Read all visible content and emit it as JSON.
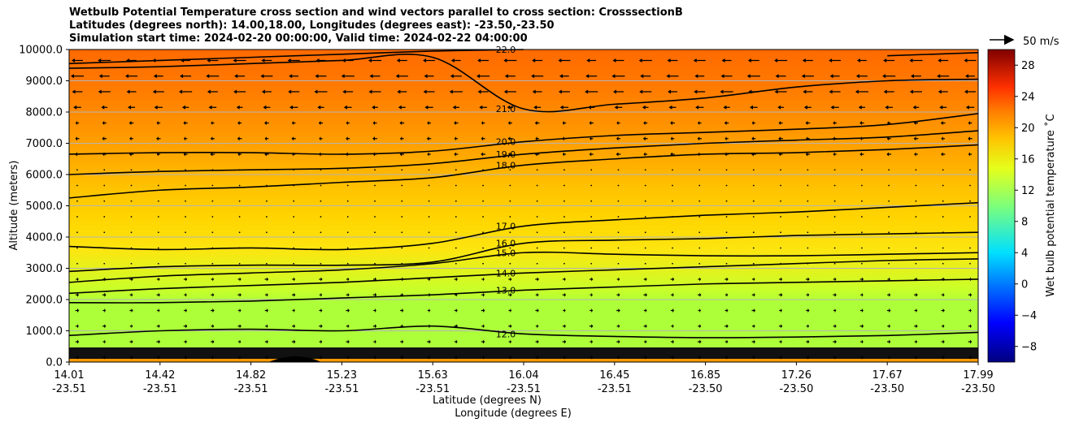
{
  "chart_data": {
    "type": "heatmap",
    "title_lines": [
      "Wetbulb Potential Temperature cross section and wind vectors parallel to cross section: CrosssectionB",
      "Latitudes (degrees north): 14.00,18.00, Longitudes (degrees east): -23.50,-23.50",
      "Simulation start time: 2024-02-20 00:00:00, Valid time: 2024-02-22 04:00:00"
    ],
    "ylabel": "Altitude (meters)",
    "xlabel_lat": "Latitude (degrees N)",
    "xlabel_lon": "Longitude (degrees E)",
    "ylim": [
      0,
      10000
    ],
    "xlim": [
      14.01,
      17.99
    ],
    "y_ticks": [
      0,
      1000,
      2000,
      3000,
      4000,
      5000,
      6000,
      7000,
      8000,
      9000,
      10000
    ],
    "y_tick_labels": [
      "0.0",
      "1000.0",
      "2000.0",
      "3000.0",
      "4000.0",
      "5000.0",
      "6000.0",
      "7000.0",
      "8000.0",
      "9000.0",
      "10000.0"
    ],
    "x_ticks": [
      {
        "lat": "14.01",
        "lon": "-23.51"
      },
      {
        "lat": "14.42",
        "lon": "-23.51"
      },
      {
        "lat": "14.82",
        "lon": "-23.51"
      },
      {
        "lat": "15.23",
        "lon": "-23.51"
      },
      {
        "lat": "15.63",
        "lon": "-23.51"
      },
      {
        "lat": "16.04",
        "lon": "-23.51"
      },
      {
        "lat": "16.45",
        "lon": "-23.51"
      },
      {
        "lat": "16.85",
        "lon": "-23.50"
      },
      {
        "lat": "17.26",
        "lon": "-23.50"
      },
      {
        "lat": "17.67",
        "lon": "-23.50"
      },
      {
        "lat": "17.99",
        "lon": "-23.50"
      }
    ],
    "grid": "horizontal",
    "colorbar": {
      "label": "Wet bulb potential temperature ˚C",
      "min": -10,
      "max": 30,
      "ticks": [
        -8,
        -4,
        0,
        4,
        8,
        12,
        16,
        20,
        24,
        28
      ],
      "tick_labels": [
        "−8",
        "−4",
        "0",
        "4",
        "8",
        "12",
        "16",
        "20",
        "24",
        "28"
      ]
    },
    "quiver_key": {
      "label": "50 m/s"
    },
    "contours": [
      {
        "level": 12.0,
        "label": "12.0",
        "y": [
          850,
          1000,
          1050,
          1000,
          1150,
          900,
          820,
          780,
          800,
          850,
          950
        ]
      },
      {
        "level": 13.0,
        "label": "13.0",
        "y": [
          1900,
          1900,
          1950,
          2050,
          2150,
          2300,
          2400,
          2500,
          2550,
          2600,
          2650
        ]
      },
      {
        "level": 14.0,
        "label": "14.0",
        "y": [
          2200,
          2350,
          2450,
          2550,
          2700,
          2850,
          2950,
          3050,
          3150,
          3250,
          3300
        ]
      },
      {
        "level": 15.0,
        "label": "15.0",
        "y": [
          2550,
          2750,
          2850,
          2950,
          3150,
          3500,
          3450,
          3400,
          3400,
          3450,
          3500
        ]
      },
      {
        "level": 16.0,
        "label": "16.0",
        "y": [
          2900,
          3050,
          3100,
          3100,
          3200,
          3800,
          3900,
          3950,
          4050,
          4100,
          4150
        ]
      },
      {
        "level": 17.0,
        "label": "17.0",
        "y": [
          3700,
          3600,
          3650,
          3600,
          3800,
          4350,
          4550,
          4700,
          4800,
          4950,
          5100
        ]
      },
      {
        "level": 18.0,
        "label": "18.0",
        "y": [
          5250,
          5500,
          5600,
          5750,
          5900,
          6300,
          6500,
          6650,
          6700,
          6800,
          6950
        ]
      },
      {
        "level": 19.0,
        "label": "19.0",
        "y": [
          6000,
          6100,
          6150,
          6200,
          6350,
          6650,
          6850,
          7000,
          7100,
          7200,
          7400
        ]
      },
      {
        "level": 20.0,
        "label": "20.0",
        "y": [
          6650,
          6700,
          6700,
          6650,
          6750,
          7050,
          7250,
          7350,
          7450,
          7600,
          7950
        ]
      },
      {
        "level": 21.0,
        "label": "21.0",
        "y": [
          9400,
          9450,
          9550,
          9650,
          9750,
          8100,
          8250,
          8450,
          8800,
          9000,
          9050
        ]
      },
      {
        "level": 22.0,
        "label": "22.0",
        "y": [
          9550,
          9650,
          9750,
          9850,
          9950,
          10000,
          null,
          null,
          null,
          9800,
          9900
        ]
      }
    ],
    "wind_direction": {
      "upper_levels": "toward lower latitude",
      "lower_levels": "toward higher latitude"
    }
  }
}
